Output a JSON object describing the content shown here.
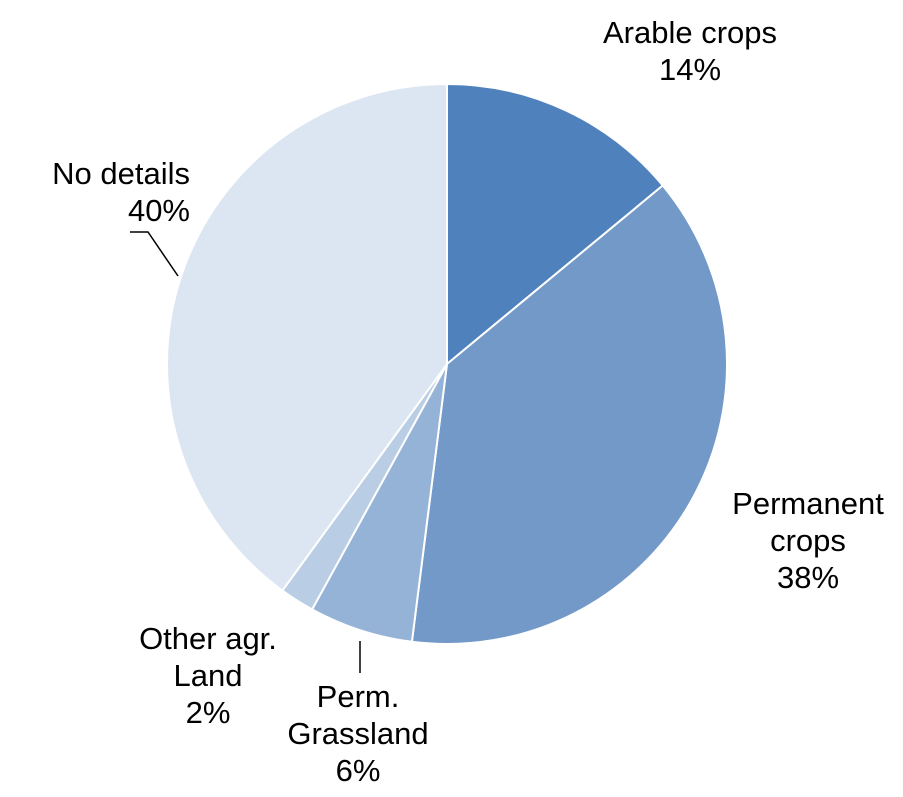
{
  "chart_data": {
    "type": "pie",
    "categories": [
      "Arable crops",
      "Permanent crops",
      "Perm. Grassland",
      "Other agr. Land",
      "No details"
    ],
    "values": [
      14,
      38,
      6,
      2,
      40
    ],
    "value_labels": [
      "14%",
      "38%",
      "6%",
      "2%",
      "40%"
    ],
    "colors": [
      "#4f81bd",
      "#7399c9",
      "#95b3d7",
      "#b9cde5",
      "#dce6f2"
    ]
  }
}
